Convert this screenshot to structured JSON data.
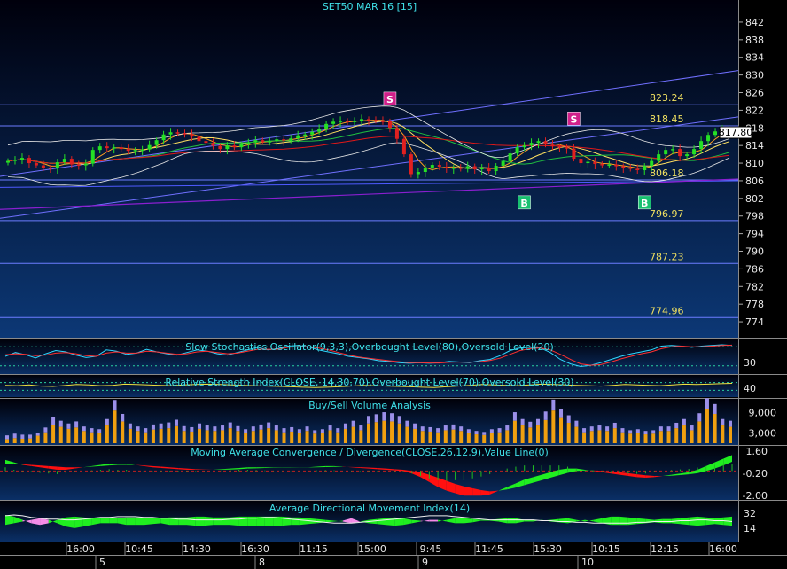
{
  "chart_data": [
    {
      "type": "candlestick",
      "title": "SET50 MAR 16   [15]",
      "last_price": "817.80",
      "ylim": [
        772,
        844
      ],
      "y_ticks": [
        "842",
        "838",
        "834",
        "830",
        "826",
        "822",
        "818",
        "814",
        "810",
        "806",
        "802",
        "798",
        "794",
        "790",
        "786",
        "782",
        "778",
        "774"
      ],
      "levels": [
        {
          "value": 823.24,
          "label": "823.24"
        },
        {
          "value": 818.45,
          "label": "818.45"
        },
        {
          "value": 806.18,
          "label": "806.18"
        },
        {
          "value": 796.97,
          "label": "796.97"
        },
        {
          "value": 787.23,
          "label": "787.23"
        },
        {
          "value": 774.96,
          "label": "774.96"
        }
      ],
      "signals": [
        {
          "label": "S",
          "bar": 54,
          "price": 822.5,
          "kind": "sell"
        },
        {
          "label": "S",
          "bar": 80,
          "price": 818.0,
          "kind": "sell"
        },
        {
          "label": "B",
          "bar": 73,
          "price": 803.0,
          "kind": "buy"
        },
        {
          "label": "B",
          "bar": 90,
          "price": 803.0,
          "kind": "buy"
        }
      ],
      "closes": [
        810.5,
        810.8,
        811.2,
        810.0,
        809.5,
        809.0,
        808.8,
        810.2,
        811.0,
        809.7,
        809.5,
        809.9,
        813.0,
        813.8,
        813.4,
        813.6,
        813.2,
        812.8,
        813.0,
        813.1,
        814.1,
        815.2,
        816.5,
        817.0,
        816.8,
        816.6,
        816.0,
        815.0,
        814.6,
        813.9,
        813.2,
        814.0,
        813.6,
        814.3,
        814.7,
        815.2,
        814.8,
        815.0,
        815.4,
        815.1,
        815.6,
        816.3,
        816.5,
        817.1,
        817.8,
        818.9,
        819.4,
        819.6,
        819.3,
        819.6,
        820.0,
        819.8,
        819.6,
        819.5,
        818.0,
        815.5,
        812.0,
        807.5,
        808.0,
        808.8,
        809.6,
        809.2,
        808.8,
        809.0,
        808.7,
        809.3,
        808.6,
        809.0,
        808.2,
        809.4,
        810.4,
        812.2,
        813.6,
        814.0,
        814.6,
        815.0,
        814.2,
        813.8,
        813.6,
        813.3,
        811.0,
        810.0,
        810.3,
        809.8,
        809.6,
        809.7,
        809.3,
        809.0,
        808.7,
        808.4,
        809.4,
        810.5,
        812.0,
        813.0,
        813.2,
        811.6,
        812.0,
        813.2,
        815.0,
        816.4,
        817.2,
        817.6,
        817.8
      ]
    },
    {
      "type": "line",
      "title": "Slow Stochastics Oscillator(9,3,3),Overbought Level(80),Oversold Level(20)",
      "y_ticks": [
        "30"
      ],
      "ylim": [
        0,
        100
      ],
      "series": [
        {
          "values": [
            50,
            62,
            55,
            45,
            58,
            68,
            64,
            54,
            46,
            50,
            70,
            66,
            56,
            60,
            72,
            64,
            58,
            54,
            62,
            70,
            66,
            58,
            54,
            62,
            70,
            78,
            70,
            74,
            82,
            84,
            80,
            70,
            64,
            58,
            50,
            46,
            42,
            36,
            34,
            30,
            28,
            30,
            28,
            30,
            34,
            32,
            30,
            36,
            40,
            52,
            68,
            76,
            78,
            76,
            62,
            40,
            26,
            18,
            22,
            30,
            40,
            50,
            58,
            64,
            70,
            82,
            84,
            82,
            78,
            82,
            84,
            86,
            84
          ]
        },
        {
          "values": [
            55,
            58,
            56,
            52,
            54,
            60,
            62,
            58,
            52,
            50,
            60,
            64,
            60,
            60,
            66,
            64,
            60,
            56,
            58,
            64,
            66,
            62,
            58,
            60,
            66,
            72,
            72,
            72,
            78,
            80,
            80,
            76,
            70,
            62,
            54,
            48,
            44,
            40,
            36,
            33,
            30,
            30,
            29,
            29,
            31,
            32,
            31,
            33,
            37,
            44,
            56,
            68,
            74,
            76,
            70,
            56,
            40,
            26,
            22,
            24,
            32,
            42,
            50,
            58,
            64,
            74,
            80,
            82,
            80,
            80,
            82,
            84,
            85
          ]
        }
      ]
    },
    {
      "type": "line",
      "title": "Relative Strength Index(CLOSE, 14,30,70),Overbought Level(70),Oversold Level(30)",
      "y_ticks": [
        "40"
      ],
      "ylim": [
        0,
        100
      ],
      "series": [
        {
          "values": [
            56,
            54,
            58,
            52,
            50,
            55,
            60,
            58,
            54,
            56,
            62,
            60,
            58,
            56,
            54,
            58,
            60,
            62,
            60,
            58,
            56,
            54,
            52,
            50,
            48,
            46,
            44,
            46,
            48,
            52,
            56,
            54,
            52,
            50,
            48,
            46,
            44,
            48,
            52,
            56,
            60,
            58,
            56,
            54,
            58,
            62,
            60,
            58,
            56,
            54,
            52,
            56,
            60,
            58,
            56,
            54,
            58,
            62,
            60,
            62,
            64,
            66
          ]
        }
      ]
    },
    {
      "type": "bar",
      "title": "Buy/Sell Volume Analysis",
      "y_ticks": [
        "9,000",
        "3,000"
      ],
      "ylim": [
        0,
        12500
      ],
      "buy": [
        1200,
        1500,
        1300,
        1400,
        2200,
        3200,
        5400,
        4800,
        4200,
        4600,
        3600,
        3200,
        3000,
        5200,
        9600,
        6400,
        4200,
        3600,
        3200,
        4000,
        4200,
        4400,
        5000,
        3600,
        3400,
        4200,
        3800,
        3600,
        3800,
        4400,
        3600,
        3000,
        3600,
        4000,
        4400,
        3800,
        3200,
        3400,
        3000,
        3600,
        2800,
        3000,
        3800,
        3200,
        4200,
        4800,
        3800,
        5800,
        6200,
        6600,
        6400,
        5800,
        4800,
        4200,
        3600,
        3400,
        3200,
        3800,
        4000,
        3600,
        3000,
        2600,
        2400,
        3000,
        3200,
        3800,
        6600,
        5200,
        4600,
        5200,
        6800,
        9600,
        7400,
        6000,
        4800,
        3200,
        3600,
        3800,
        3600,
        4400,
        3200,
        2800,
        3000,
        2600,
        2800,
        3600,
        3600,
        4400,
        5200,
        3800,
        6400,
        10000,
        8600,
        5200,
        4800
      ],
      "sell": [
        1100,
        1300,
        1200,
        1100,
        900,
        1400,
        2400,
        1800,
        1600,
        1800,
        1300,
        1200,
        1100,
        1900,
        3100,
        2200,
        1600,
        1300,
        1200,
        1500,
        1600,
        1700,
        1900,
        1400,
        1300,
        1600,
        1400,
        1300,
        1400,
        1700,
        1400,
        1100,
        1300,
        1500,
        1700,
        1400,
        1200,
        1300,
        1100,
        1300,
        1000,
        1100,
        1400,
        1200,
        1600,
        1800,
        1400,
        2200,
        2300,
        2500,
        2400,
        2200,
        1800,
        1600,
        1300,
        1300,
        1200,
        1400,
        1500,
        1300,
        1100,
        1000,
        900,
        1100,
        1200,
        1400,
        2500,
        1900,
        1700,
        1900,
        2500,
        3200,
        2700,
        2200,
        1800,
        1200,
        1300,
        1400,
        1300,
        1600,
        1200,
        1000,
        1100,
        1000,
        1000,
        1300,
        1300,
        1600,
        1900,
        1400,
        2400,
        3200,
        2900,
        1900,
        1800
      ]
    },
    {
      "type": "area",
      "title": "Moving Average Convergence / Divergence(CLOSE,26,12,9),Value Line(0)",
      "y_ticks": [
        "1.60",
        "-0.20",
        "-2.00"
      ],
      "ylim": [
        -2.2,
        1.9
      ],
      "macd": [
        0.9,
        0.7,
        0.5,
        0.4,
        0.3,
        0.2,
        0.1,
        0.1,
        0.2,
        0.3,
        0.4,
        0.5,
        0.6,
        0.6,
        0.6,
        0.5,
        0.4,
        0.3,
        0.25,
        0.2,
        0.15,
        0.1,
        0.1,
        0.1,
        0.1,
        0.15,
        0.2,
        0.25,
        0.3,
        0.3,
        0.3,
        0.3,
        0.3,
        0.3,
        0.3,
        0.3,
        0.35,
        0.4,
        0.4,
        0.35,
        0.3,
        0.25,
        0.2,
        0.15,
        0.1,
        0.05,
        0.0,
        -0.2,
        -0.5,
        -0.9,
        -1.3,
        -1.6,
        -1.8,
        -2.0,
        -2.0,
        -2.0,
        -1.9,
        -1.6,
        -1.3,
        -1.0,
        -0.7,
        -0.5,
        -0.3,
        -0.1,
        0.1,
        0.2,
        0.2,
        0.1,
        0.0,
        -0.1,
        -0.2,
        -0.3,
        -0.4,
        -0.5,
        -0.55,
        -0.5,
        -0.4,
        -0.3,
        -0.2,
        -0.1,
        0.1,
        0.4,
        0.7,
        1.0,
        1.3
      ],
      "signal": [
        0.6,
        0.6,
        0.55,
        0.5,
        0.45,
        0.4,
        0.35,
        0.3,
        0.3,
        0.3,
        0.35,
        0.4,
        0.45,
        0.5,
        0.5,
        0.5,
        0.45,
        0.4,
        0.35,
        0.3,
        0.25,
        0.2,
        0.15,
        0.12,
        0.1,
        0.1,
        0.12,
        0.15,
        0.2,
        0.22,
        0.25,
        0.27,
        0.28,
        0.28,
        0.29,
        0.29,
        0.3,
        0.32,
        0.34,
        0.34,
        0.33,
        0.31,
        0.28,
        0.25,
        0.2,
        0.15,
        0.1,
        0.0,
        -0.1,
        -0.3,
        -0.55,
        -0.8,
        -1.05,
        -1.25,
        -1.4,
        -1.55,
        -1.65,
        -1.6,
        -1.5,
        -1.35,
        -1.15,
        -0.95,
        -0.75,
        -0.55,
        -0.35,
        -0.15,
        0.0,
        0.05,
        0.05,
        0.0,
        -0.05,
        -0.1,
        -0.18,
        -0.27,
        -0.35,
        -0.4,
        -0.4,
        -0.38,
        -0.33,
        -0.27,
        -0.18,
        0.0,
        0.2,
        0.45,
        0.75
      ]
    },
    {
      "type": "area",
      "title": "Average Directional Movement Index(14)",
      "y_ticks": [
        "32",
        "14"
      ],
      "ylim": [
        0,
        45
      ],
      "plus_di": [
        30,
        28,
        24,
        20,
        18,
        20,
        24,
        27,
        28,
        27,
        26,
        26,
        26,
        26,
        27,
        27,
        27,
        26,
        26,
        27,
        27,
        27,
        28,
        28,
        27,
        27,
        27,
        28,
        28,
        28,
        28,
        28,
        28,
        27,
        27,
        26,
        25,
        24,
        23,
        22,
        20,
        22,
        24,
        25,
        26,
        27,
        26,
        24,
        23,
        22,
        22,
        24,
        26,
        26,
        25,
        24,
        24,
        25,
        26,
        26,
        24,
        24,
        23,
        24,
        25,
        26,
        24,
        22,
        24,
        26,
        28,
        28,
        27,
        26,
        25,
        24,
        25,
        25,
        26,
        27,
        28,
        27,
        26,
        27,
        28
      ],
      "minus_di": [
        18,
        20,
        22,
        24,
        26,
        24,
        20,
        16,
        14,
        16,
        18,
        20,
        20,
        20,
        18,
        18,
        18,
        19,
        20,
        18,
        18,
        18,
        17,
        17,
        18,
        18,
        18,
        17,
        17,
        17,
        17,
        17,
        17,
        18,
        18,
        19,
        20,
        21,
        22,
        23,
        26,
        22,
        20,
        19,
        18,
        17,
        18,
        20,
        22,
        24,
        24,
        22,
        20,
        20,
        21,
        23,
        23,
        22,
        20,
        20,
        22,
        22,
        24,
        22,
        21,
        20,
        22,
        24,
        22,
        20,
        18,
        18,
        18,
        19,
        20,
        21,
        20,
        20,
        19,
        18,
        17,
        18,
        19,
        18,
        17
      ],
      "adx": [
        29,
        30,
        29,
        27,
        26,
        25,
        25,
        24,
        24,
        25,
        26,
        27,
        27,
        28,
        28,
        28,
        27,
        27,
        26,
        26,
        25,
        25,
        24,
        24,
        24,
        24,
        25,
        25,
        26,
        26,
        27,
        27,
        26,
        25,
        24,
        23,
        22,
        21,
        20,
        20,
        20,
        21,
        22,
        23,
        24,
        25,
        26,
        27,
        28,
        29,
        29,
        29,
        28,
        27,
        26,
        25,
        24,
        24,
        24,
        24,
        24,
        24,
        23,
        23,
        22,
        22,
        21,
        21,
        20,
        20,
        20,
        20,
        20,
        21,
        21,
        22,
        22,
        22,
        23,
        23,
        24,
        24,
        23,
        23,
        22
      ]
    }
  ],
  "x_axis": {
    "time_labels": [
      "16:00",
      "10:45",
      "14:30",
      "16:30",
      "11:15",
      "15:00",
      "9:45",
      "11:45",
      "15:30",
      "10:15",
      "12:15",
      "16:00"
    ],
    "date_labels": [
      "5",
      "8",
      "9",
      "10"
    ]
  },
  "colors": {
    "background": "#000000",
    "panel_gradient_top": "#000010",
    "panel_gradient_bottom": "#0b3572",
    "title": "#3fe0e8",
    "level_label": "#f0e060",
    "level_line": "#6c7cff",
    "up_candle": "#25e025",
    "down_candle": "#e02020",
    "sell_marker": "#d0208a",
    "buy_marker": "#18c070",
    "buy_volume": "#f0a010",
    "sell_volume": "#9b8fe8",
    "macd_up": "#20ee20",
    "macd_down": "#ff1010",
    "adx_plus": "#20ee20",
    "adx_minus": "#f48ce8"
  }
}
